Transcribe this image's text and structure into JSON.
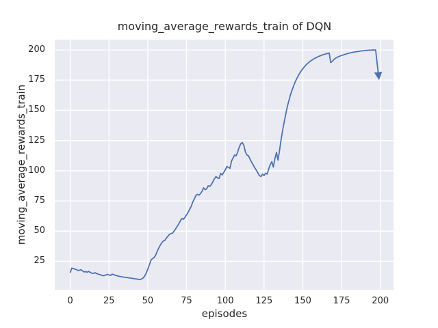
{
  "chart_data": {
    "type": "line",
    "title": "moving_average_rewards_train of DQN",
    "xlabel": "episodes",
    "ylabel": "moving_average_rewards_train",
    "x_ticks": [
      0,
      25,
      50,
      75,
      100,
      125,
      150,
      175,
      200
    ],
    "y_ticks": [
      25,
      50,
      75,
      100,
      125,
      150,
      175,
      200
    ],
    "xlim": [
      -10,
      208.5
    ],
    "ylim": [
      1.5,
      208.5
    ],
    "grid": true,
    "legend_position": "none",
    "style": {
      "figure_bg": "#ffffff",
      "plot_bg": "#eaeaf2",
      "grid_color": "#ffffff",
      "text_color": "#262626",
      "line_color": "#4c72b0"
    },
    "series": [
      {
        "name": "moving_average_rewards_train",
        "color": "#4c72b0",
        "end_marker": "arrow",
        "x": [
          0,
          1,
          2,
          3,
          4,
          5,
          6,
          7,
          8,
          9,
          10,
          11,
          12,
          13,
          14,
          15,
          16,
          17,
          18,
          19,
          20,
          21,
          22,
          23,
          24,
          25,
          26,
          27,
          28,
          29,
          30,
          31,
          32,
          33,
          34,
          35,
          36,
          37,
          38,
          39,
          40,
          41,
          42,
          43,
          44,
          45,
          46,
          47,
          48,
          49,
          50,
          51,
          52,
          53,
          54,
          55,
          56,
          57,
          58,
          59,
          60,
          61,
          62,
          63,
          64,
          65,
          66,
          67,
          68,
          69,
          70,
          71,
          72,
          73,
          74,
          75,
          76,
          77,
          78,
          79,
          80,
          81,
          82,
          83,
          84,
          85,
          86,
          87,
          88,
          89,
          90,
          91,
          92,
          93,
          94,
          95,
          96,
          97,
          98,
          99,
          100,
          101,
          102,
          103,
          104,
          105,
          106,
          107,
          108,
          109,
          110,
          111,
          112,
          113,
          114,
          115,
          116,
          117,
          118,
          119,
          120,
          121,
          122,
          123,
          124,
          125,
          126,
          127,
          128,
          129,
          130,
          131,
          132,
          133,
          134,
          135,
          136,
          137,
          138,
          139,
          140,
          141,
          142,
          143,
          144,
          145,
          146,
          147,
          148,
          149,
          150,
          151,
          152,
          153,
          154,
          155,
          156,
          157,
          158,
          159,
          160,
          161,
          162,
          163,
          164,
          165,
          166,
          167,
          168,
          169,
          170,
          171,
          172,
          173,
          174,
          175,
          176,
          177,
          178,
          179,
          180,
          181,
          182,
          183,
          184,
          185,
          186,
          187,
          188,
          189,
          190,
          191,
          192,
          193,
          194,
          195,
          196,
          197,
          198,
          199
        ],
        "y": [
          16.0,
          19.4,
          19.0,
          18.5,
          18.2,
          17.4,
          17.7,
          18.0,
          17.0,
          16.2,
          16.5,
          16.0,
          16.7,
          15.7,
          15.2,
          15.0,
          15.6,
          14.9,
          14.4,
          14.0,
          13.6,
          13.1,
          13.3,
          13.7,
          14.2,
          13.8,
          13.4,
          14.4,
          14.0,
          13.5,
          13.1,
          12.8,
          12.5,
          12.3,
          12.0,
          11.9,
          11.7,
          11.5,
          11.3,
          11.1,
          10.9,
          10.7,
          10.5,
          10.3,
          10.1,
          10.0,
          10.4,
          11.2,
          12.8,
          15.2,
          18.5,
          22.0,
          25.8,
          27.3,
          28.0,
          30.0,
          33.0,
          35.8,
          38.3,
          40.3,
          41.8,
          42.3,
          44.3,
          45.8,
          47.3,
          48.0,
          48.4,
          50.0,
          52.0,
          54.0,
          56.0,
          58.5,
          60.5,
          59.8,
          61.5,
          63.5,
          65.5,
          68.0,
          70.5,
          74.0,
          76.5,
          79.5,
          80.5,
          79.8,
          81.0,
          83.0,
          85.8,
          84.3,
          85.0,
          87.5,
          87.0,
          88.5,
          91.0,
          93.3,
          95.2,
          94.0,
          93.6,
          97.8,
          96.5,
          98.5,
          100.8,
          103.5,
          102.8,
          102.0,
          108.0,
          110.5,
          113.0,
          112.4,
          115.5,
          119.5,
          122.5,
          123.3,
          120.8,
          115.5,
          113.0,
          112.3,
          109.5,
          107.0,
          104.8,
          102.5,
          100.5,
          98.2,
          96.0,
          95.2,
          97.2,
          96.0,
          98.0,
          97.2,
          101.5,
          105.0,
          107.5,
          103.0,
          110.0,
          115.2,
          108.8,
          117.0,
          126.0,
          133.5,
          140.5,
          147.0,
          153.0,
          158.0,
          162.5,
          166.5,
          170.0,
          173.2,
          176.0,
          178.5,
          180.7,
          182.7,
          184.4,
          186.0,
          187.4,
          188.7,
          189.8,
          190.8,
          191.7,
          192.5,
          193.2,
          193.9,
          194.5,
          195.0,
          195.5,
          196.0,
          196.4,
          196.8,
          197.1,
          197.4,
          189.5,
          190.5,
          192.0,
          193.0,
          193.8,
          194.4,
          194.9,
          195.4,
          195.8,
          196.2,
          196.6,
          197.0,
          197.3,
          197.6,
          197.9,
          198.2,
          198.4,
          198.6,
          198.8,
          199.0,
          199.2,
          199.3,
          199.5,
          199.6,
          199.7,
          199.8,
          199.8,
          199.9,
          199.9,
          199.9,
          188.0,
          177.0
        ]
      }
    ]
  }
}
